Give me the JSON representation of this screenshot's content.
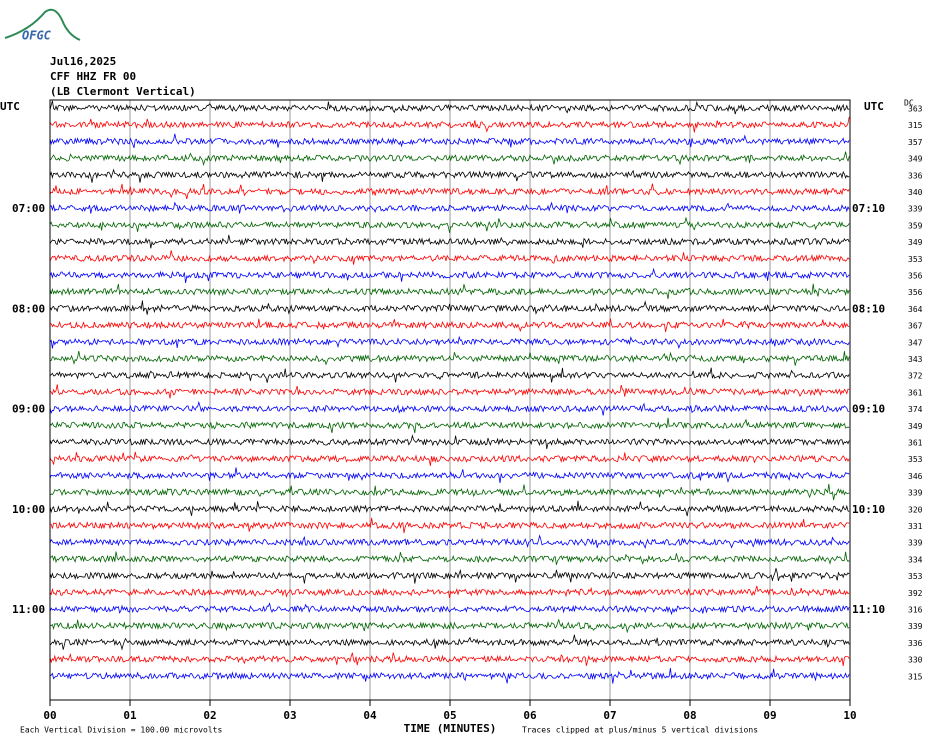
{
  "logo": "OFGC",
  "header": {
    "date": "Jul16,2025",
    "station": "CFF HHZ FR 00",
    "location": "(LB  Clermont Vertical)"
  },
  "left_axis": {
    "title": "UTC",
    "labels": [
      {
        "trace": 6,
        "text": "07:00"
      },
      {
        "trace": 12,
        "text": "08:00"
      },
      {
        "trace": 18,
        "text": "09:00"
      },
      {
        "trace": 24,
        "text": "10:00"
      },
      {
        "trace": 30,
        "text": "11:00"
      }
    ]
  },
  "right_axis": {
    "title": "UTC",
    "labels": [
      {
        "trace": 6,
        "text": "07:10"
      },
      {
        "trace": 12,
        "text": "08:10"
      },
      {
        "trace": 18,
        "text": "09:10"
      },
      {
        "trace": 24,
        "text": "10:10"
      },
      {
        "trace": 30,
        "text": "11:10"
      }
    ]
  },
  "dc": {
    "title": "DC",
    "values": [
      "363",
      "315",
      "357",
      "349",
      "336",
      "340",
      "339",
      "359",
      "349",
      "353",
      "356",
      "356",
      "364",
      "367",
      "347",
      "343",
      "372",
      "361",
      "374",
      "349",
      "361",
      "353",
      "346",
      "339",
      "320",
      "331",
      "339",
      "334",
      "353",
      "392",
      "316",
      "339",
      "336",
      "330",
      "315"
    ]
  },
  "trace_colors": [
    "#000000",
    "#ff0000",
    "#0000ff",
    "#006400"
  ],
  "x_axis": {
    "title": "TIME (MINUTES)",
    "ticks": [
      "00",
      "01",
      "02",
      "03",
      "04",
      "05",
      "06",
      "07",
      "08",
      "09",
      "10"
    ]
  },
  "footer": {
    "scale": "Each Vertical Division =  100.00 microvolts",
    "note": "Traces clipped at plus/minus 5 vertical divisions"
  }
}
